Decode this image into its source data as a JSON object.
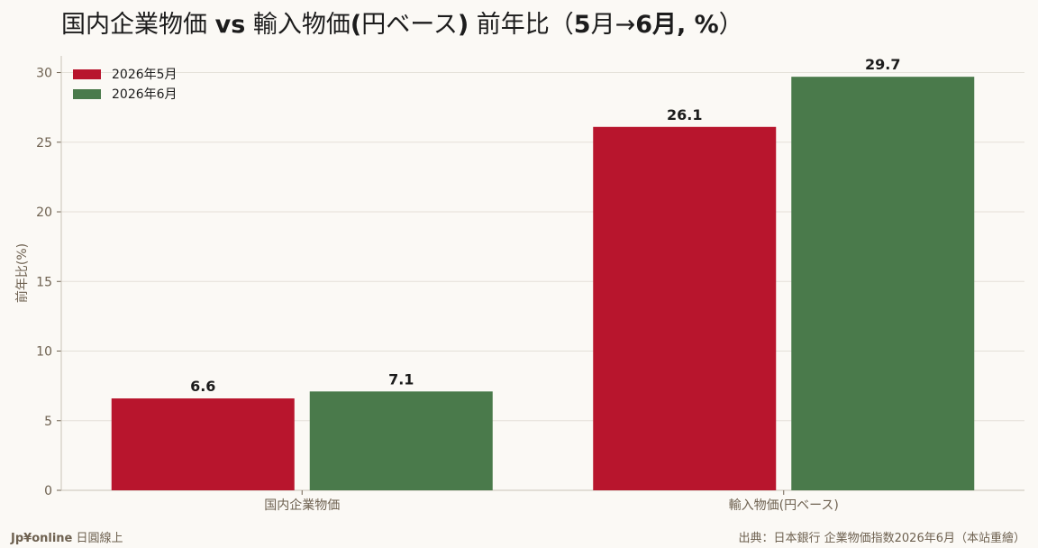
{
  "title": {
    "part1": "国内企業物価 ",
    "part2": "vs",
    "part3": " 輸入物価",
    "part4": "(",
    "part5": "円ベース",
    "part6": ")",
    "part7": " 前年比（",
    "part8": "5",
    "part9": "月→",
    "part10": "6",
    "part11": "月, %",
    "part12": "）"
  },
  "footer": {
    "brand": "Jp¥online",
    "brand_suffix": " 日圓線上",
    "source": "出典：日本銀行 企業物価指数2026年6月（本站重繪）"
  },
  "colors": {
    "series1": "#b8152d",
    "series2": "#4a7a4b",
    "grid": "#e4e0d8",
    "axis": "#6e6150"
  },
  "chart_data": {
    "type": "bar",
    "categories": [
      "国内企業物価",
      "輸入物価(円ベース)"
    ],
    "series": [
      {
        "name": "2026年5月",
        "values": [
          6.6,
          26.1
        ]
      },
      {
        "name": "2026年6月",
        "values": [
          7.1,
          29.7
        ]
      }
    ],
    "ylabel": "前年比(%)",
    "xlabel": "",
    "ylim": [
      0,
      31.2
    ],
    "yticks": [
      0,
      5,
      10,
      15,
      20,
      25,
      30
    ],
    "data_labels": [
      "6.6",
      "26.1",
      "7.1",
      "29.7"
    ],
    "legend_position": "top-left",
    "grid": true
  }
}
